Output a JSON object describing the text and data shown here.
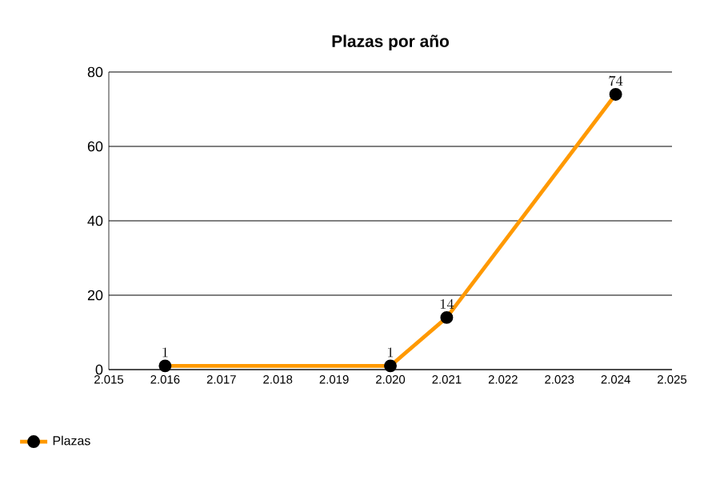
{
  "chart_data": {
    "type": "line",
    "title": "Plazas por año",
    "x": [
      2016,
      2020,
      2021,
      2024
    ],
    "series": [
      {
        "name": "Plazas",
        "color": "#ff9900",
        "values": [
          1,
          1,
          14,
          74
        ]
      }
    ],
    "xlim": [
      2015,
      2025
    ],
    "xticks": [
      {
        "value": 2015,
        "label": "2.015"
      },
      {
        "value": 2016,
        "label": "2.016"
      },
      {
        "value": 2017,
        "label": "2.017"
      },
      {
        "value": 2018,
        "label": "2.018"
      },
      {
        "value": 2019,
        "label": "2.019"
      },
      {
        "value": 2020,
        "label": "2.020"
      },
      {
        "value": 2021,
        "label": "2.021"
      },
      {
        "value": 2022,
        "label": "2.022"
      },
      {
        "value": 2023,
        "label": "2.023"
      },
      {
        "value": 2024,
        "label": "2.024"
      },
      {
        "value": 2025,
        "label": "2.025"
      }
    ],
    "ylim": [
      0,
      80
    ],
    "yticks": [
      0,
      20,
      40,
      60,
      80
    ],
    "grid": "y",
    "legend": "bottom left",
    "marker": "circle",
    "line_style": "solid",
    "data_labels": true
  }
}
